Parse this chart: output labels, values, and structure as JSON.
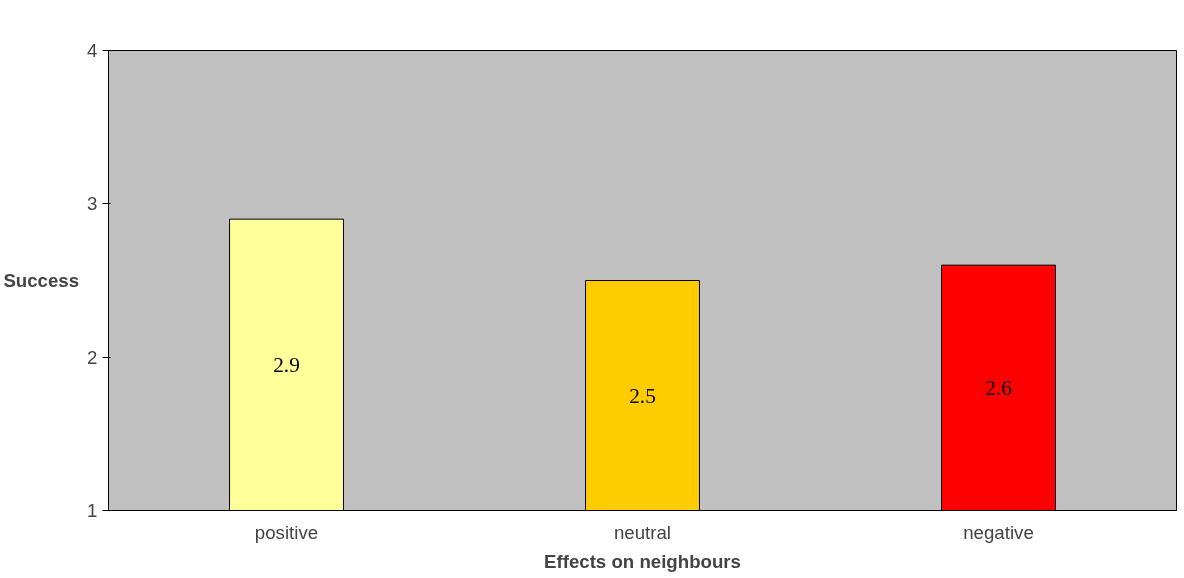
{
  "chart_data": {
    "type": "bar",
    "xlabel": "Effects on neighbours",
    "ylabel": "Success",
    "categories": [
      "positive",
      "neutral",
      "negative"
    ],
    "values": [
      2.9,
      2.5,
      2.6
    ],
    "colors": [
      "#ffff99",
      "#ffcc00",
      "#ff0000"
    ],
    "ylim": [
      1,
      4
    ],
    "yticks": [
      1,
      2,
      3,
      4
    ],
    "grid": false,
    "data_labels": true
  }
}
